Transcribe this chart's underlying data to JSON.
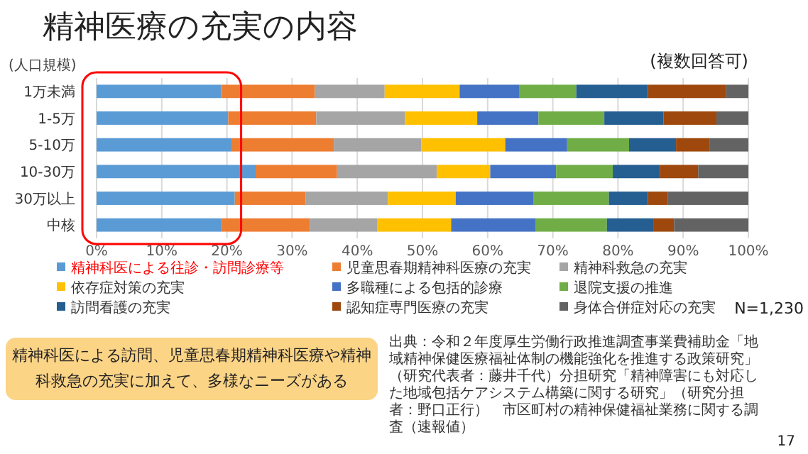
{
  "chart_data": {
    "type": "bar",
    "orientation": "horizontal",
    "stacked": true,
    "title": "精神医療の充実の内容",
    "subtitle": "(複数回答可)",
    "ylabel": "(人口規模)",
    "categories": [
      "1万未満",
      "1-5万",
      "5-10万",
      "10-30万",
      "30万以上",
      "中核"
    ],
    "series": [
      {
        "name": "精神科医による往診・訪問診療等",
        "color": "#5b9bd5",
        "values": [
          19.1,
          20.2,
          20.7,
          24.4,
          21.2,
          19.2
        ]
      },
      {
        "name": "児童思春期精神科医療の充実",
        "color": "#ed7d31",
        "values": [
          14.4,
          13.5,
          15.7,
          12.5,
          10.9,
          13.5
        ]
      },
      {
        "name": "精神科救急の充実",
        "color": "#a5a5a5",
        "values": [
          10.7,
          13.6,
          13.4,
          15.3,
          12.6,
          10.4
        ]
      },
      {
        "name": "依存症対策の充実",
        "color": "#ffc000",
        "values": [
          11.5,
          11.1,
          12.9,
          8.2,
          10.4,
          11.3
        ]
      },
      {
        "name": "多職種による包括的診療",
        "color": "#4472c4",
        "values": [
          9.2,
          9.4,
          9.5,
          10.1,
          11.9,
          13.0
        ]
      },
      {
        "name": "退院支援の推進",
        "color": "#70ad47",
        "values": [
          8.7,
          10.1,
          9.5,
          8.7,
          11.6,
          10.9
        ]
      },
      {
        "name": "訪問看護の充実",
        "color": "#255e91",
        "values": [
          11.0,
          9.1,
          7.2,
          7.2,
          6.0,
          7.2
        ]
      },
      {
        "name": "認知症専門医療の充実",
        "color": "#9e480e",
        "values": [
          12.0,
          8.1,
          5.2,
          5.9,
          3.0,
          3.1
        ]
      },
      {
        "name": "身体合併症対応の充実",
        "color": "#636363",
        "values": [
          3.4,
          4.9,
          5.9,
          7.7,
          12.4,
          11.4
        ]
      }
    ],
    "xlim": [
      0,
      100
    ],
    "xticks": [
      {
        "value": 0,
        "label": "0%"
      },
      {
        "value": 10,
        "label": "10%"
      },
      {
        "value": 20,
        "label": "20%"
      },
      {
        "value": 30,
        "label": "30%"
      },
      {
        "value": 40,
        "label": "40%"
      },
      {
        "value": 50,
        "label": "50%"
      },
      {
        "value": 60,
        "label": "60%"
      },
      {
        "value": 70,
        "label": "70%"
      },
      {
        "value": 80,
        "label": "80%"
      },
      {
        "value": 90,
        "label": "90%"
      },
      {
        "value": 100,
        "label": "100%"
      }
    ],
    "grid": "x",
    "legend": "bottom",
    "annotations": [
      "N=1,230",
      "精神科医による訪問、児童思春期精神科医療や精神科救急の充実に加えて、多様なニーズがある",
      "出典：令和２年度厚生労働行政推進調査事業費補助金「地域精神保健医療福祉体制の機能強化を推進する政策研究」（研究代表者：藤井千代）分担研究「精神障害にも対応した地域包括ケアシステム構築に関する研究」（研究分担者：野口正行）　市区町村の精神保健福祉業務に関する調査（速報値）",
      "17"
    ]
  }
}
